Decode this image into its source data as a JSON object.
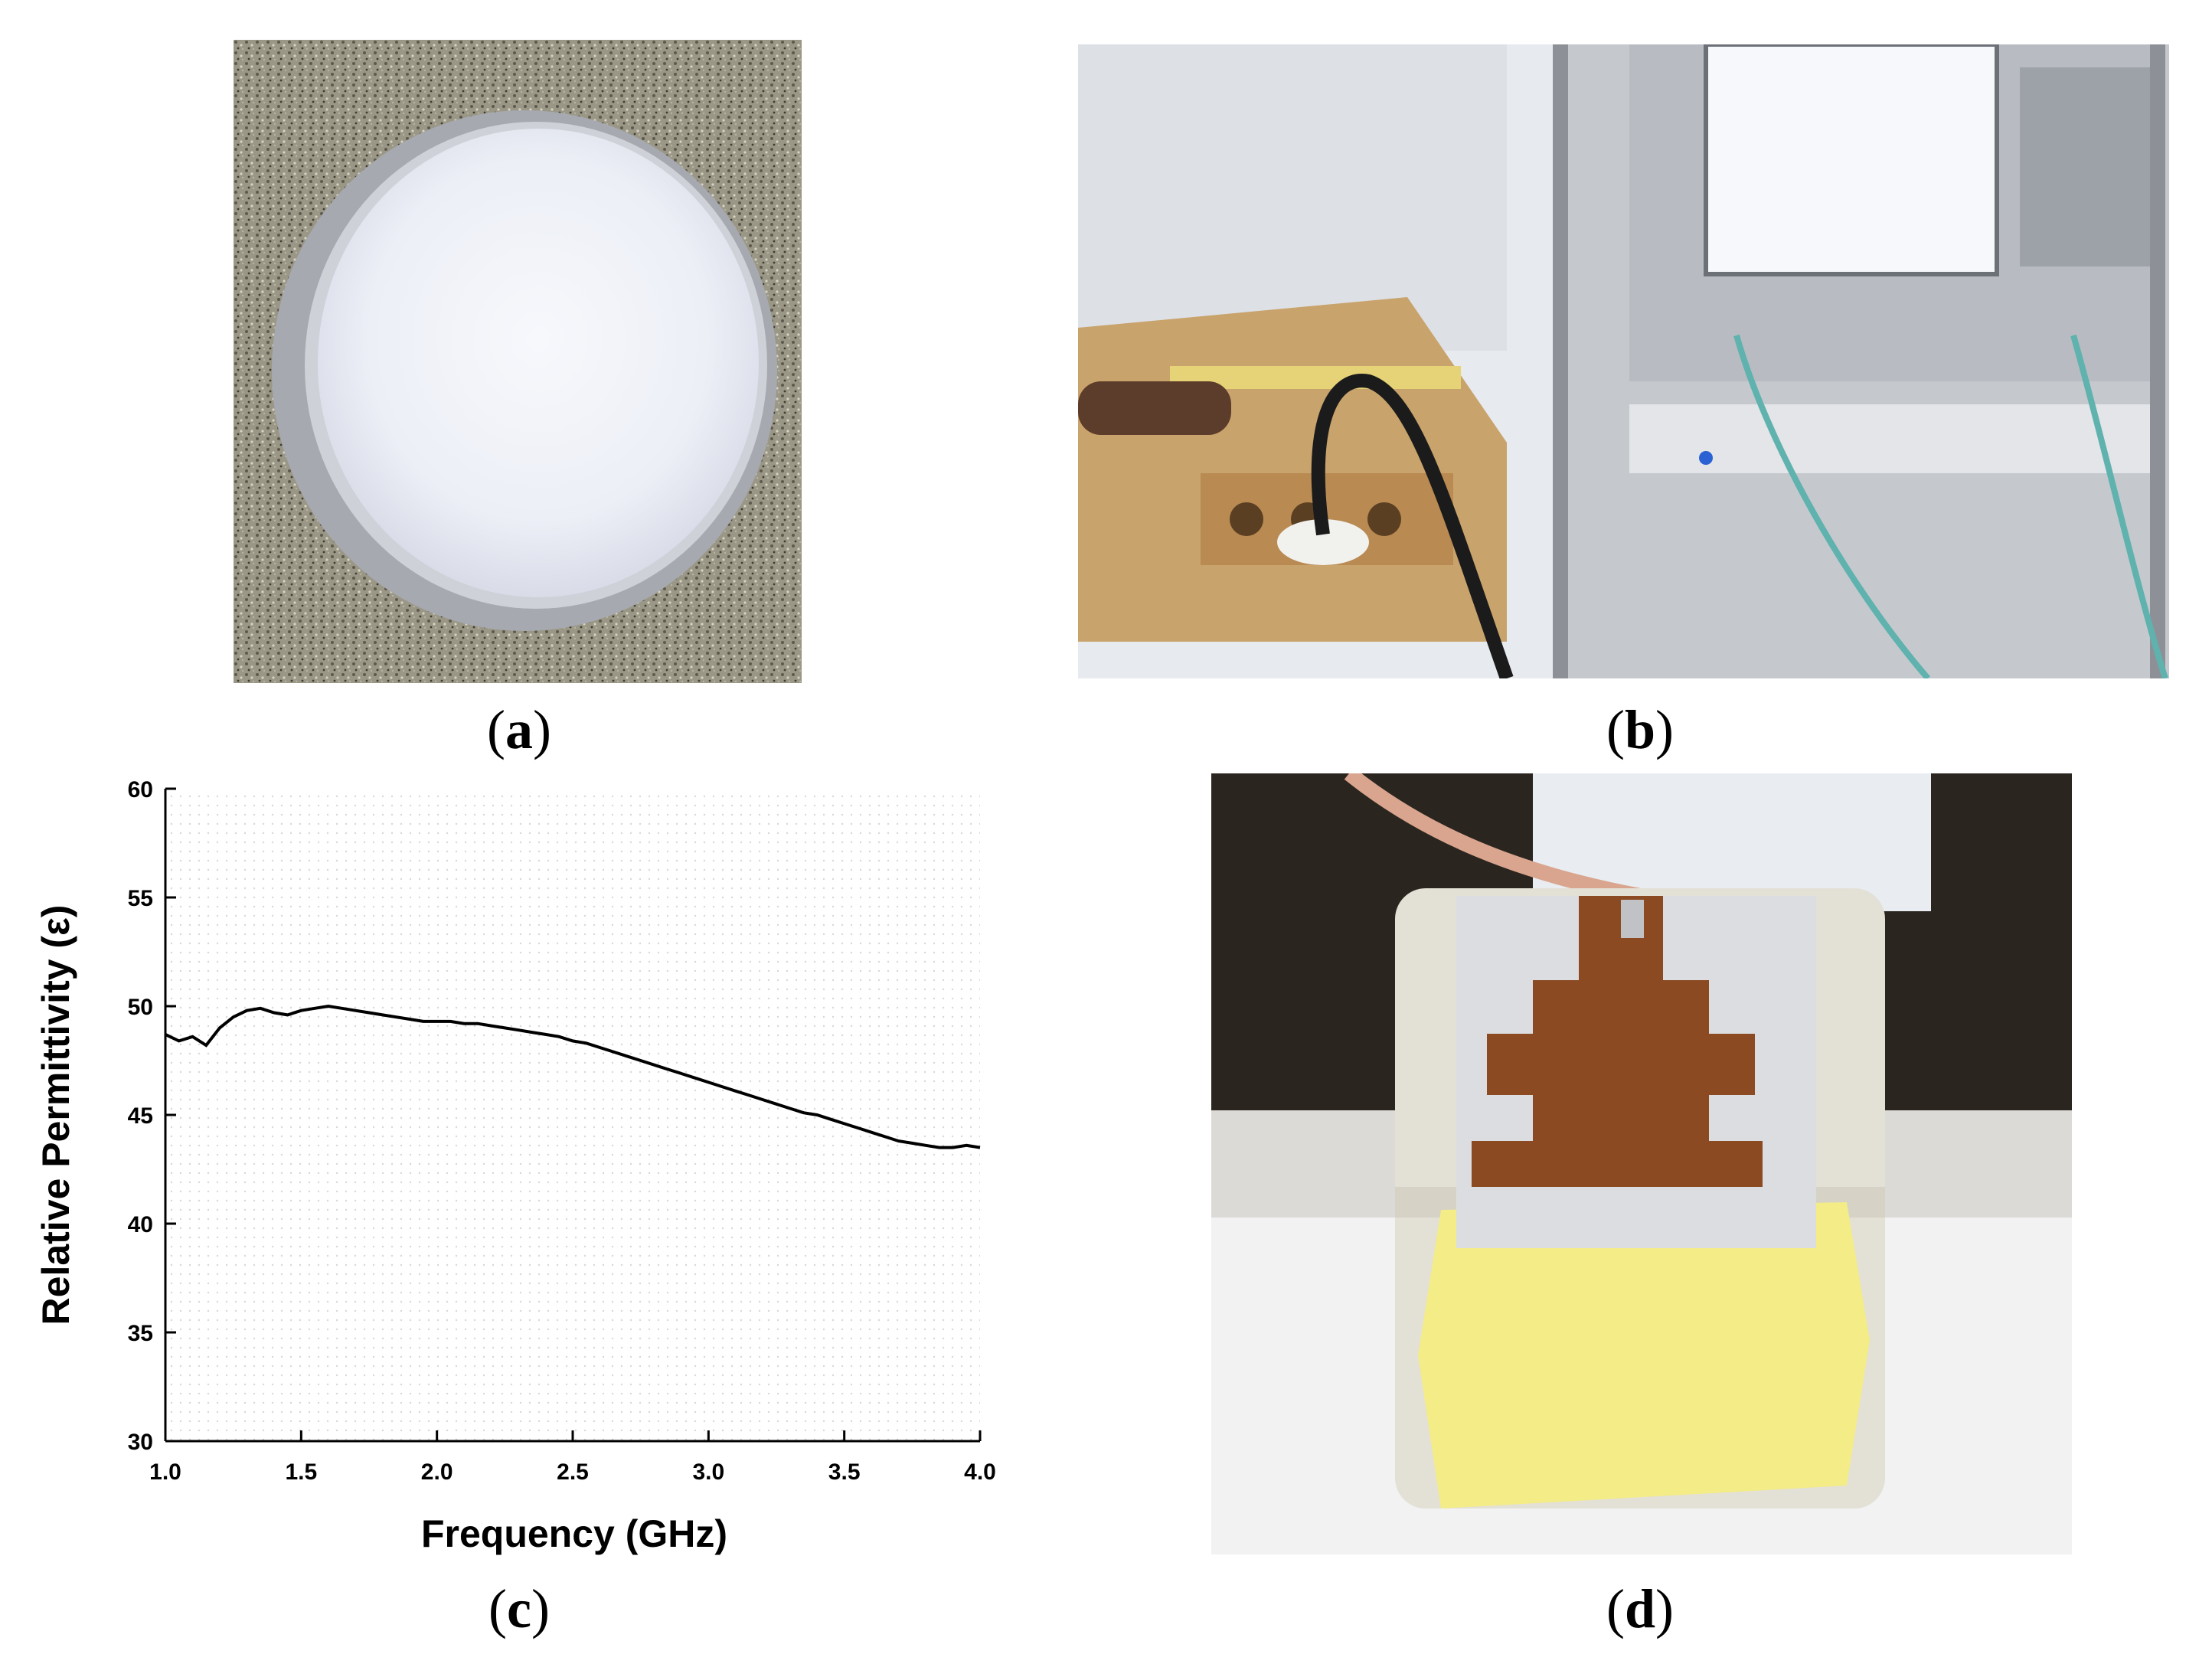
{
  "captions": {
    "a": "a",
    "b": "b",
    "c": "c",
    "d": "d"
  },
  "colors": {
    "granite": "#8a8775",
    "sample": "#eef0f7",
    "bench": "#c9a36c",
    "rack": "#d8dbe0",
    "tape_yellow": "#f4ec86",
    "copper": "#8b4a22",
    "trace": "#000000"
  },
  "chart_data": {
    "type": "line",
    "xlabel": "Frequency (GHz)",
    "ylabel": "Relative Permittivity (ε)",
    "xlim": [
      1.0,
      4.0
    ],
    "ylim": [
      30,
      60
    ],
    "xticks": [
      "1.0",
      "1.5",
      "2.0",
      "2.5",
      "3.0",
      "3.5",
      "4.0"
    ],
    "yticks": [
      "30",
      "35",
      "40",
      "45",
      "50",
      "55",
      "60"
    ],
    "grid": "dotted",
    "series": [
      {
        "x": [
          1.0,
          1.05,
          1.1,
          1.15,
          1.2,
          1.25,
          1.3,
          1.35,
          1.4,
          1.45,
          1.5,
          1.55,
          1.6,
          1.65,
          1.7,
          1.75,
          1.8,
          1.85,
          1.9,
          1.95,
          2.0,
          2.05,
          2.1,
          2.15,
          2.2,
          2.25,
          2.3,
          2.35,
          2.4,
          2.45,
          2.5,
          2.55,
          2.6,
          2.65,
          2.7,
          2.75,
          2.8,
          2.85,
          2.9,
          2.95,
          3.0,
          3.05,
          3.1,
          3.15,
          3.2,
          3.25,
          3.3,
          3.35,
          3.4,
          3.45,
          3.5,
          3.55,
          3.6,
          3.65,
          3.7,
          3.75,
          3.8,
          3.85,
          3.9,
          3.95,
          4.0
        ],
        "y": [
          48.7,
          48.4,
          48.6,
          48.2,
          49.0,
          49.5,
          49.8,
          49.9,
          49.7,
          49.6,
          49.8,
          49.9,
          50.0,
          49.9,
          49.8,
          49.7,
          49.6,
          49.5,
          49.4,
          49.3,
          49.3,
          49.3,
          49.2,
          49.2,
          49.1,
          49.0,
          48.9,
          48.8,
          48.7,
          48.6,
          48.4,
          48.3,
          48.1,
          47.9,
          47.7,
          47.5,
          47.3,
          47.1,
          46.9,
          46.7,
          46.5,
          46.3,
          46.1,
          45.9,
          45.7,
          45.5,
          45.3,
          45.1,
          45.0,
          44.8,
          44.6,
          44.4,
          44.2,
          44.0,
          43.8,
          43.7,
          43.6,
          43.5,
          43.5,
          43.6,
          43.5
        ]
      }
    ]
  }
}
